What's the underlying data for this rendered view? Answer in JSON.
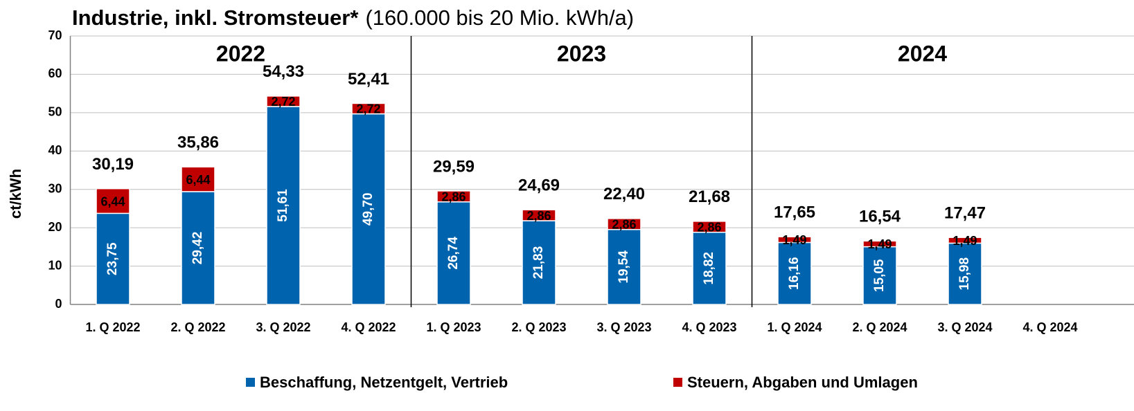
{
  "chart_data": {
    "type": "stacked_bar",
    "title": "Industrie, inkl. Stromsteuer*",
    "subtitle": "(160.000 bis 20 Mio. kWh/a)",
    "y_label": "ct/kWh",
    "annotations": [
      "2022",
      "2023",
      "2024"
    ],
    "categories": [
      "1. Q 2022",
      "2. Q 2022",
      "3. Q 2022",
      "4. Q 2022",
      "1. Q 2023",
      "2. Q 2023",
      "3. Q 2023",
      "4. Q 2023",
      "1. Q 2024",
      "2. Q 2024",
      "3. Q 2024",
      "4. Q 2024"
    ],
    "series": [
      {
        "name": "Beschaffung, Netzentgelt, Vertrieb",
        "color": "#0063ae",
        "values": [
          23.75,
          29.42,
          51.61,
          49.7,
          26.74,
          21.83,
          19.54,
          18.82,
          16.16,
          15.05,
          15.98,
          null
        ],
        "value_labels": [
          "23,75",
          "29,42",
          "51,61",
          "49,70",
          "26,74",
          "21,83",
          "19,54",
          "18,82",
          "16,16",
          "15,05",
          "15,98",
          null
        ]
      },
      {
        "name": "Steuern, Abgaben und Umlagen",
        "color": "#c00000",
        "values": [
          6.44,
          6.44,
          2.72,
          2.72,
          2.86,
          2.86,
          2.86,
          2.86,
          1.49,
          1.49,
          1.49,
          null
        ],
        "value_labels": [
          "6,44",
          "6,44",
          "2,72",
          "2,72",
          "2,86",
          "2,86",
          "2,86",
          "2,86",
          "1,49",
          "1,49",
          "1,49",
          null
        ]
      }
    ],
    "totals": {
      "values": [
        30.19,
        35.86,
        54.33,
        52.41,
        29.59,
        24.69,
        22.4,
        21.68,
        17.65,
        16.54,
        17.47,
        null
      ],
      "value_labels": [
        "30,19",
        "35,86",
        "54,33",
        "52,41",
        "29,59",
        "24,69",
        "22,40",
        "21,68",
        "17,65",
        "16,54",
        "17,47",
        null
      ]
    },
    "ylim": [
      0,
      70
    ],
    "yticks": [
      0,
      10,
      20,
      30,
      40,
      50,
      60,
      70
    ],
    "grid": true,
    "legend": "bottom"
  }
}
